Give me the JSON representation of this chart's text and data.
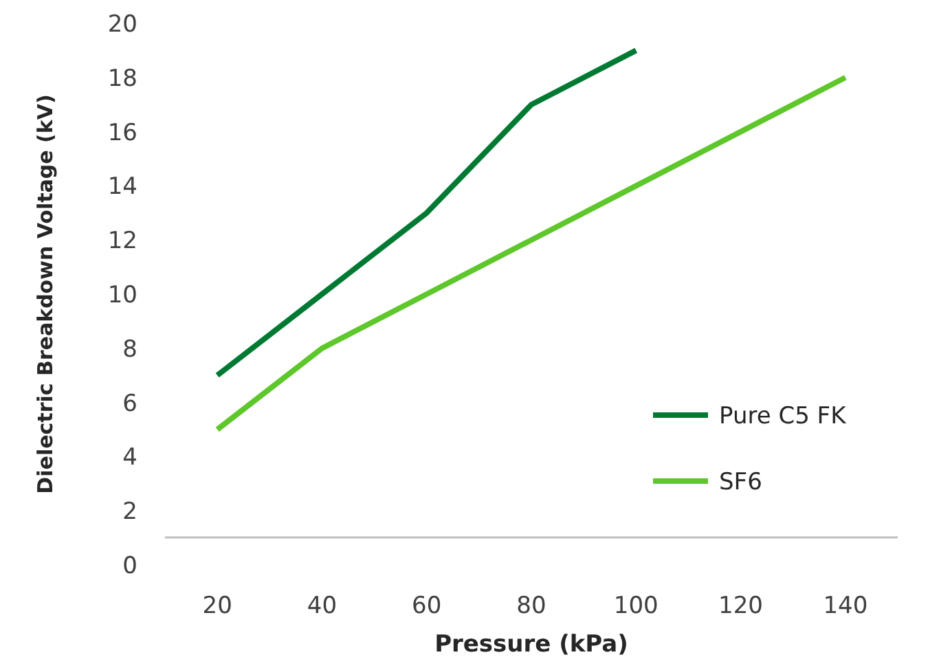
{
  "chart_data": {
    "type": "line",
    "xlabel": "Pressure (kPa)",
    "ylabel": "Dielectric Breakdown Voltage (kV)",
    "xlim": [
      10,
      150
    ],
    "xticks": [
      20,
      40,
      60,
      80,
      100,
      120,
      140
    ],
    "ylim": [
      0,
      20
    ],
    "yticks": [
      0,
      2,
      4,
      6,
      8,
      10,
      12,
      14,
      16,
      18,
      20
    ],
    "series": [
      {
        "name": "Pure C5 FK",
        "color": "#007a33",
        "x": [
          20,
          40,
          60,
          80,
          100
        ],
        "values": [
          7,
          10,
          13,
          17,
          19
        ]
      },
      {
        "name": "SF6",
        "color": "#5ec72b",
        "x": [
          20,
          40,
          60,
          80,
          100,
          120,
          140
        ],
        "values": [
          5,
          8,
          10,
          12,
          14,
          16,
          18
        ]
      }
    ],
    "grid": false,
    "legend": "bottom right",
    "marker": "none",
    "line_style": "solid"
  }
}
